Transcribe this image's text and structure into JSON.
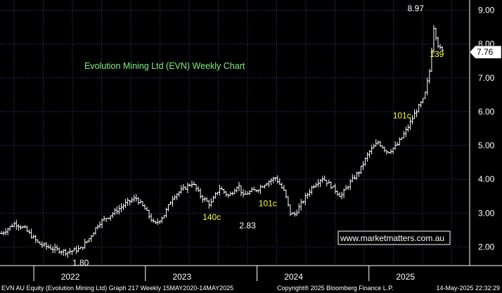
{
  "chart_data": {
    "type": "bar",
    "subtype": "ohlc-weekly",
    "title": "Evolution Mining Ltd (EVN) Weekly Chart",
    "ylim": [
      1.45,
      9.3
    ],
    "y_ticks": [
      "2.00",
      "3.00",
      "4.00",
      "5.00",
      "6.00",
      "7.00",
      "8.00",
      "9.00"
    ],
    "x_ticks": [
      "2022",
      "2023",
      "2024",
      "2025"
    ],
    "x_tick_dates": [
      "2022-01-01",
      "2023-01-01",
      "2024-01-01",
      "2025-01-01"
    ],
    "last_price": "7.76",
    "grid": true,
    "annotations": [
      {
        "text": "8.97",
        "date": "2025-02-15",
        "y": 8.97,
        "color": "#ffffff"
      },
      {
        "text": "139",
        "date": "2025-04-25",
        "y": 7.62,
        "color": "#ffff33"
      },
      {
        "text": "101c",
        "date": "2025-01-01",
        "y": 5.8,
        "color": "#ffff33"
      },
      {
        "text": "140c",
        "date": "2023-04-20",
        "y": 2.8,
        "color": "#ffff33"
      },
      {
        "text": "2.83",
        "date": "2023-08-15",
        "y": 2.55,
        "color": "#ffffff"
      },
      {
        "text": "101c",
        "date": "2023-10-20",
        "y": 3.2,
        "color": "#ffff33"
      },
      {
        "text": "1.80",
        "date": "2022-02-15",
        "y": 1.45,
        "color": "#ffffff"
      }
    ],
    "series": [
      {
        "points": [
          [
            "2021-06-01",
            2.4
          ],
          [
            "2021-07-15",
            2.7
          ],
          [
            "2021-08-15",
            2.55
          ],
          [
            "2021-10-01",
            2.1
          ],
          [
            "2021-11-15",
            1.95
          ],
          [
            "2022-01-01",
            1.85
          ],
          [
            "2022-02-15",
            1.95
          ],
          [
            "2022-03-15",
            2.25
          ],
          [
            "2022-04-15",
            2.7
          ],
          [
            "2022-06-01",
            3.0
          ],
          [
            "2022-07-15",
            3.3
          ],
          [
            "2022-08-15",
            3.45
          ],
          [
            "2022-09-15",
            3.1
          ],
          [
            "2022-10-15",
            2.65
          ],
          [
            "2022-11-15",
            2.95
          ],
          [
            "2022-12-15",
            3.5
          ],
          [
            "2023-01-15",
            3.7
          ],
          [
            "2023-02-15",
            3.9
          ],
          [
            "2023-03-15",
            3.5
          ],
          [
            "2023-04-15",
            3.25
          ],
          [
            "2023-05-15",
            3.75
          ],
          [
            "2023-06-15",
            3.5
          ],
          [
            "2023-07-15",
            3.85
          ],
          [
            "2023-08-01",
            3.5
          ],
          [
            "2023-08-15",
            3.6
          ],
          [
            "2023-09-15",
            3.7
          ],
          [
            "2023-10-15",
            3.9
          ],
          [
            "2023-11-15",
            4.05
          ],
          [
            "2023-12-15",
            3.6
          ],
          [
            "2024-01-01",
            3.0
          ],
          [
            "2024-01-15",
            2.95
          ],
          [
            "2024-02-15",
            3.4
          ],
          [
            "2024-03-15",
            3.8
          ],
          [
            "2024-04-15",
            4.05
          ],
          [
            "2024-05-15",
            3.8
          ],
          [
            "2024-06-15",
            3.5
          ],
          [
            "2024-07-15",
            3.9
          ],
          [
            "2024-08-15",
            4.25
          ],
          [
            "2024-09-15",
            4.8
          ],
          [
            "2024-10-15",
            5.1
          ],
          [
            "2024-11-15",
            4.8
          ],
          [
            "2024-12-15",
            5.0
          ],
          [
            "2025-01-15",
            5.45
          ],
          [
            "2025-02-15",
            6.0
          ],
          [
            "2025-03-15",
            6.4
          ],
          [
            "2025-04-01",
            7.2
          ],
          [
            "2025-04-15",
            8.5
          ],
          [
            "2025-05-01",
            7.9
          ],
          [
            "2025-05-15",
            7.76
          ]
        ]
      }
    ]
  },
  "watermark": "www.marketmatters.com.au",
  "footer": {
    "left": "EVN AU Equity (Evolution Mining Ltd) Graph 217  Weekly 15MAY2020-14MAY2025",
    "center": "Copyright® 2025 Bloomberg Finance L.P.",
    "right": "14-May-2025 22:32:29"
  },
  "colors": {
    "background": "#000000",
    "grid": "#3a3f8a",
    "price": "#ffffff",
    "title": "#7ef07e",
    "label_yellow": "#ffff33",
    "watermark_border": "#ffffff"
  }
}
